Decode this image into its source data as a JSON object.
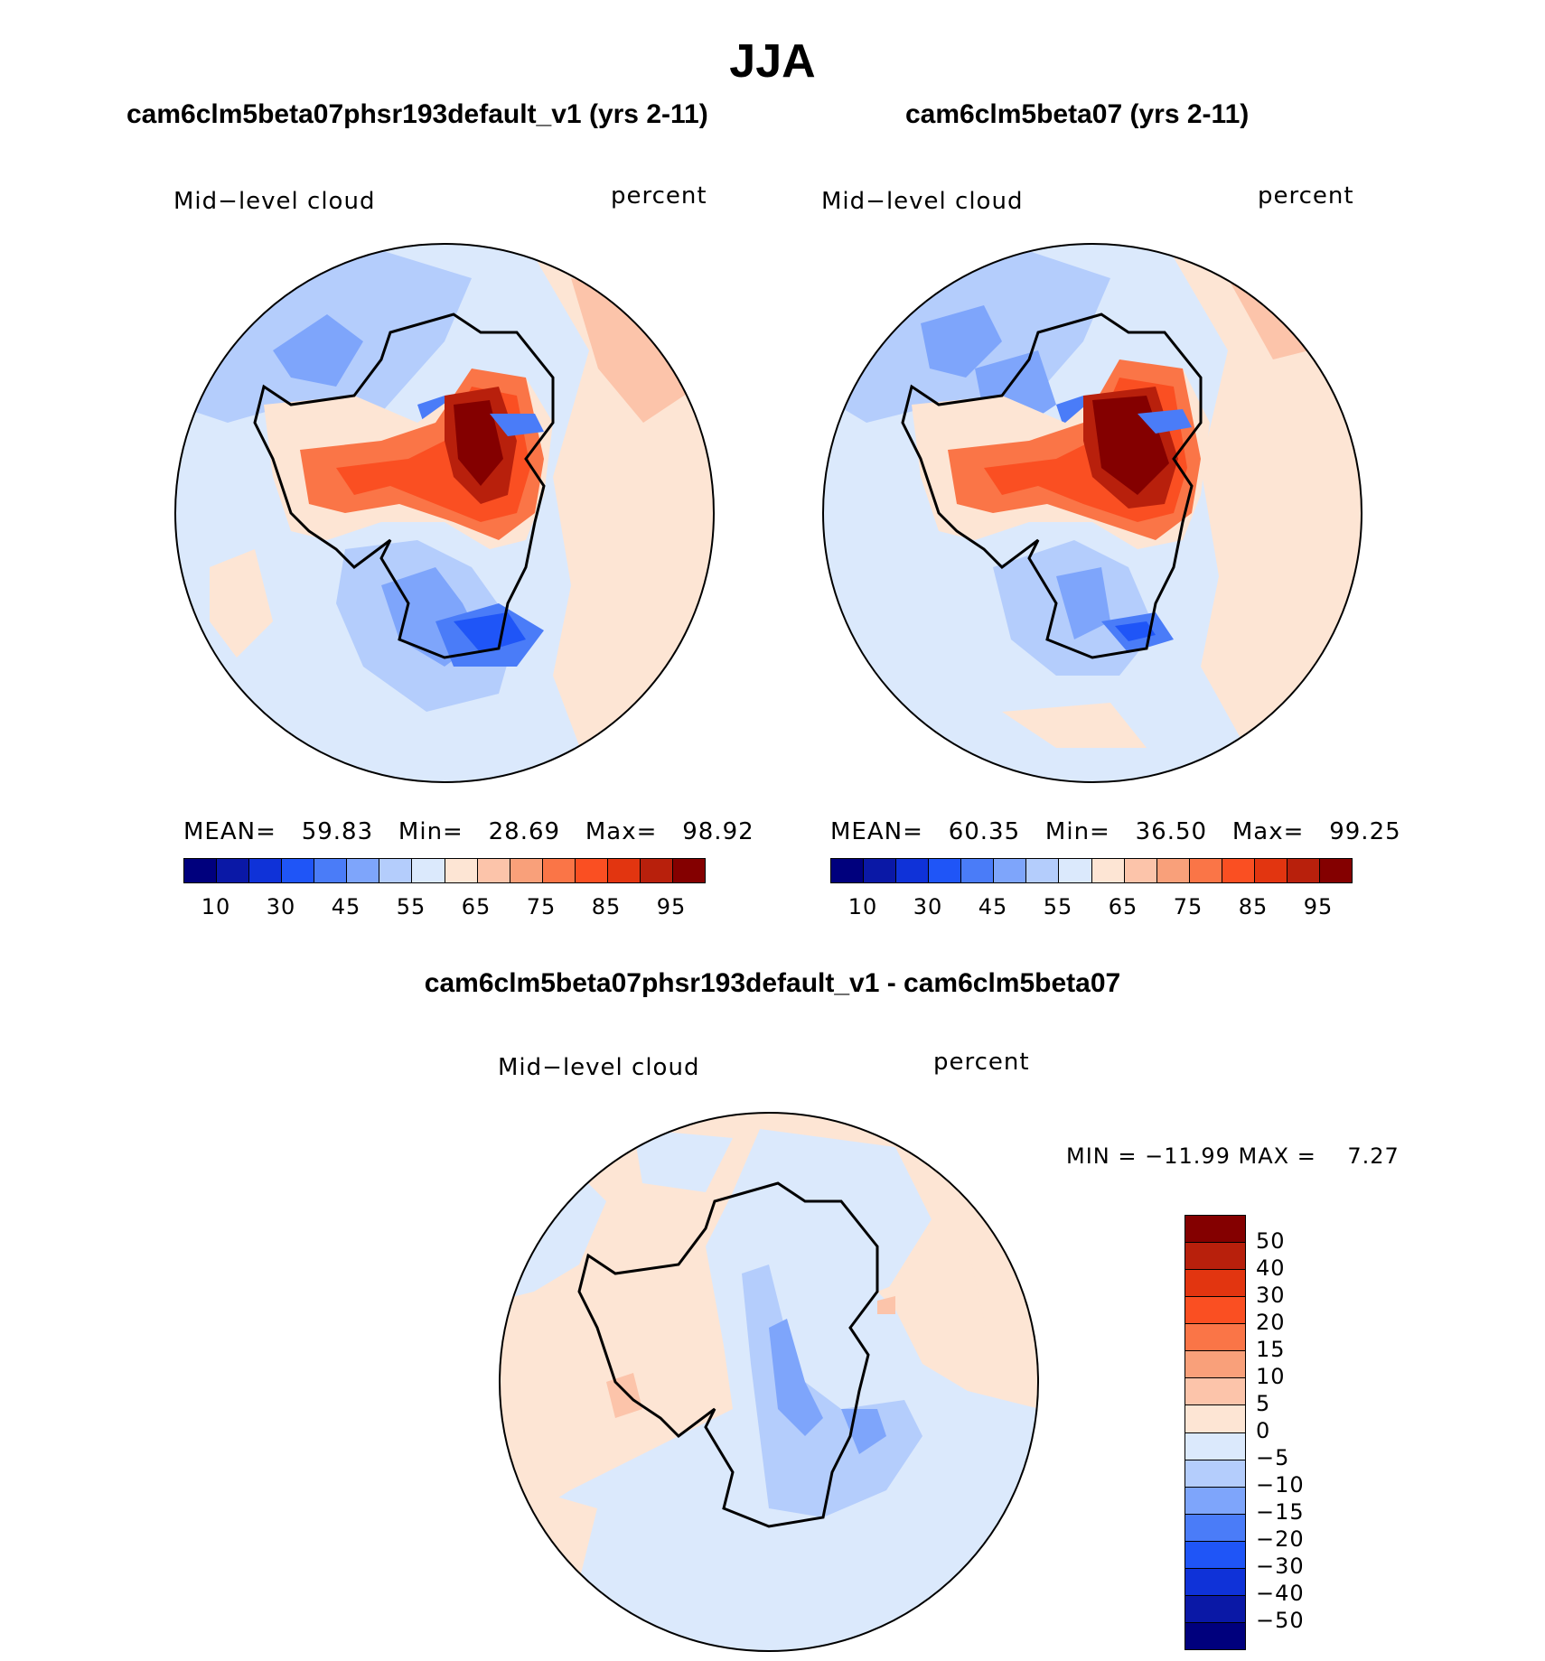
{
  "title": "JJA",
  "panels": [
    {
      "case_title": "cam6clm5beta07phsr193default_v1 (yrs 2-11)",
      "variable": "Mid−level cloud",
      "units": "percent",
      "stats": {
        "mean_label": "MEAN=",
        "mean": "59.83",
        "min_label": "Min=",
        "min": "28.69",
        "max_label": "Max=",
        "max": "98.92"
      }
    },
    {
      "case_title": "cam6clm5beta07 (yrs 2-11)",
      "variable": "Mid−level cloud",
      "units": "percent",
      "stats": {
        "mean_label": "MEAN=",
        "mean": "60.35",
        "min_label": "Min=",
        "min": "36.50",
        "max_label": "Max=",
        "max": "99.25"
      }
    }
  ],
  "diff_panel": {
    "case_title": "cam6clm5beta07phsr193default_v1 - cam6clm5beta07",
    "variable": "Mid−level cloud",
    "units": "percent",
    "minmax_text": "MIN = −11.99 MAX =    7.27"
  },
  "colorbar_abs": {
    "colors": [
      "#00007d",
      "#0a18a6",
      "#0f32d8",
      "#1f55f7",
      "#4a7cf8",
      "#7ea5fb",
      "#b4cdfc",
      "#dbe9fc",
      "#fde5d4",
      "#fcc4aa",
      "#f9a07a",
      "#fa7547",
      "#fa4f22",
      "#e23510",
      "#b8200c",
      "#840000"
    ],
    "labels": [
      "10",
      "30",
      "45",
      "55",
      "65",
      "75",
      "85",
      "95"
    ]
  },
  "colorbar_diff": {
    "colors": [
      "#840000",
      "#b8200c",
      "#e23510",
      "#fa4f22",
      "#fa7547",
      "#f9a07a",
      "#fcc4aa",
      "#fde5d4",
      "#dbe9fc",
      "#b4cdfc",
      "#7ea5fb",
      "#4a7cf8",
      "#1f55f7",
      "#0f32d8",
      "#0a18a6",
      "#00007d"
    ],
    "labels": [
      "50",
      "40",
      "30",
      "20",
      "15",
      "10",
      "5",
      "0",
      "−5",
      "−10",
      "−15",
      "−20",
      "−30",
      "−40",
      "−50"
    ]
  }
}
